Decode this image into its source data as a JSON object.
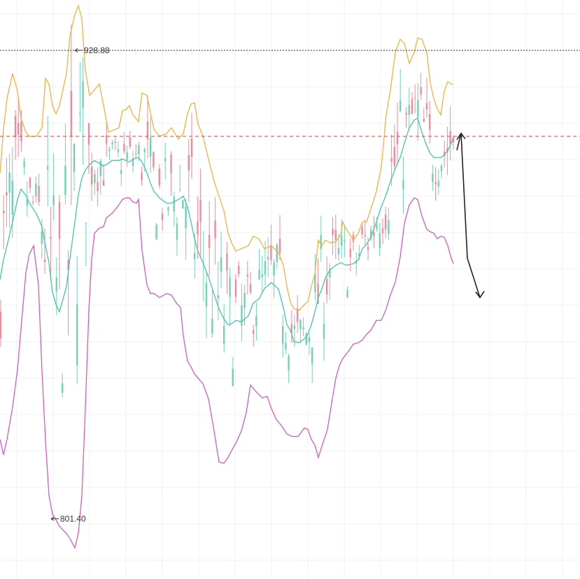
{
  "chart_data": {
    "type": "candlestick",
    "grid": true,
    "colors": {
      "up": "#6fd3b3",
      "down": "#f08a9a",
      "upper_band": "#f0b23c",
      "middle_band": "#3ec8ae",
      "lower_band": "#d85ac0",
      "high_line": "#333333",
      "ref_line": "#d95757",
      "arrow": "#222222",
      "grid": "#f1f1f1"
    },
    "y_range": [
      785,
      942
    ],
    "annotations": {
      "high_label": "928.88",
      "low_label": "801.40",
      "high_value": 928.88,
      "low_value": 801.4,
      "reference_level": 905.5
    },
    "upper_band": [
      [
        0,
        895.4
      ],
      [
        5,
        907.3
      ],
      [
        10,
        915.7
      ],
      [
        18,
        922.6
      ],
      [
        25,
        917.8
      ],
      [
        30,
        910.4
      ],
      [
        37,
        906.6
      ],
      [
        42,
        905.5
      ],
      [
        52,
        905.5
      ],
      [
        60,
        907.8
      ],
      [
        65,
        921.3
      ],
      [
        70,
        919.7
      ],
      [
        75,
        913.8
      ],
      [
        80,
        911.6
      ],
      [
        85,
        913.8
      ],
      [
        95,
        922.6
      ],
      [
        100,
        932.9
      ],
      [
        107,
        938.6
      ],
      [
        112,
        941.0
      ],
      [
        117,
        937.4
      ],
      [
        122,
        923.5
      ],
      [
        128,
        916.6
      ],
      [
        135,
        918.1
      ],
      [
        142,
        919.7
      ],
      [
        148,
        914.0
      ],
      [
        155,
        906.6
      ],
      [
        160,
        907.0
      ],
      [
        170,
        907.8
      ],
      [
        175,
        912.4
      ],
      [
        180,
        912.8
      ],
      [
        185,
        913.8
      ],
      [
        190,
        911.3
      ],
      [
        198,
        909.5
      ],
      [
        203,
        917.3
      ],
      [
        210,
        916.6
      ],
      [
        215,
        912.0
      ],
      [
        220,
        907.4
      ],
      [
        228,
        905.5
      ],
      [
        238,
        906.2
      ],
      [
        245,
        907.8
      ],
      [
        255,
        904.7
      ],
      [
        262,
        906.2
      ],
      [
        268,
        911.6
      ],
      [
        273,
        914.3
      ],
      [
        278,
        914.6
      ],
      [
        283,
        908.9
      ],
      [
        290,
        905.5
      ],
      [
        298,
        899.3
      ],
      [
        306,
        893.2
      ],
      [
        313,
        889.2
      ],
      [
        320,
        885.2
      ],
      [
        326,
        879.1
      ],
      [
        332,
        876.1
      ],
      [
        337,
        874.2
      ],
      [
        345,
        874.9
      ],
      [
        355,
        875.7
      ],
      [
        362,
        878.3
      ],
      [
        370,
        877.6
      ],
      [
        378,
        874.9
      ],
      [
        388,
        875.7
      ],
      [
        398,
        873.8
      ],
      [
        405,
        870.4
      ],
      [
        410,
        864.6
      ],
      [
        415,
        860.4
      ],
      [
        420,
        858.5
      ],
      [
        428,
        858.1
      ],
      [
        435,
        859.7
      ],
      [
        440,
        860.4
      ],
      [
        445,
        864.6
      ],
      [
        450,
        868.0
      ],
      [
        455,
        877.2
      ],
      [
        460,
        875.7
      ],
      [
        465,
        877.2
      ],
      [
        472,
        876.5
      ],
      [
        480,
        876.8
      ],
      [
        487,
        878.8
      ],
      [
        490,
        882.2
      ],
      [
        495,
        880.2
      ],
      [
        505,
        877.2
      ],
      [
        512,
        879.1
      ],
      [
        518,
        882.2
      ],
      [
        524,
        882.2
      ],
      [
        530,
        885.7
      ],
      [
        538,
        890.5
      ],
      [
        545,
        897.1
      ],
      [
        552,
        911.3
      ],
      [
        558,
        918.1
      ],
      [
        565,
        928.3
      ],
      [
        572,
        931.9
      ],
      [
        578,
        930.8
      ],
      [
        585,
        925.3
      ],
      [
        592,
        928.3
      ],
      [
        597,
        932.2
      ],
      [
        603,
        931.9
      ],
      [
        610,
        928.3
      ],
      [
        615,
        920.0
      ],
      [
        620,
        915.7
      ],
      [
        625,
        913.0
      ],
      [
        630,
        911.3
      ],
      [
        635,
        917.8
      ],
      [
        640,
        920.4
      ],
      [
        645,
        919.7
      ],
      [
        648,
        919.7
      ]
    ],
    "middle_band": [
      [
        0,
        866.5
      ],
      [
        5,
        871.9
      ],
      [
        10,
        875.7
      ],
      [
        18,
        882.2
      ],
      [
        25,
        888.3
      ],
      [
        30,
        891.1
      ],
      [
        37,
        889.4
      ],
      [
        42,
        887.3
      ],
      [
        52,
        884.4
      ],
      [
        60,
        880.9
      ],
      [
        65,
        875.7
      ],
      [
        70,
        871.1
      ],
      [
        75,
        863.1
      ],
      [
        80,
        859.7
      ],
      [
        85,
        857.7
      ],
      [
        95,
        864.6
      ],
      [
        100,
        872.3
      ],
      [
        107,
        882.2
      ],
      [
        112,
        889.6
      ],
      [
        117,
        894.1
      ],
      [
        122,
        896.3
      ],
      [
        128,
        897.8
      ],
      [
        135,
        898.9
      ],
      [
        142,
        898.1
      ],
      [
        148,
        897.4
      ],
      [
        155,
        898.1
      ],
      [
        160,
        898.9
      ],
      [
        170,
        898.9
      ],
      [
        175,
        899.3
      ],
      [
        180,
        898.9
      ],
      [
        185,
        898.5
      ],
      [
        190,
        899.3
      ],
      [
        198,
        899.7
      ],
      [
        203,
        898.5
      ],
      [
        210,
        895.6
      ],
      [
        215,
        892.7
      ],
      [
        220,
        890.5
      ],
      [
        228,
        888.7
      ],
      [
        238,
        887.3
      ],
      [
        245,
        887.3
      ],
      [
        255,
        888.3
      ],
      [
        262,
        889.2
      ],
      [
        268,
        886.3
      ],
      [
        273,
        882.2
      ],
      [
        278,
        877.6
      ],
      [
        283,
        874.2
      ],
      [
        290,
        871.1
      ],
      [
        298,
        867.2
      ],
      [
        306,
        862.5
      ],
      [
        313,
        858.5
      ],
      [
        320,
        855.8
      ],
      [
        326,
        854.2
      ],
      [
        332,
        854.6
      ],
      [
        337,
        855.4
      ],
      [
        345,
        855.0
      ],
      [
        355,
        856.6
      ],
      [
        362,
        860.1
      ],
      [
        370,
        861.2
      ],
      [
        378,
        864.1
      ],
      [
        388,
        865.7
      ],
      [
        398,
        863.9
      ],
      [
        405,
        858.9
      ],
      [
        410,
        854.2
      ],
      [
        415,
        852.7
      ],
      [
        420,
        849.6
      ],
      [
        428,
        849.3
      ],
      [
        435,
        850.4
      ],
      [
        440,
        851.6
      ],
      [
        445,
        854.2
      ],
      [
        450,
        857.7
      ],
      [
        455,
        861.6
      ],
      [
        460,
        863.9
      ],
      [
        465,
        866.9
      ],
      [
        472,
        869.2
      ],
      [
        480,
        870.4
      ],
      [
        487,
        871.1
      ],
      [
        490,
        870.8
      ],
      [
        495,
        870.4
      ],
      [
        505,
        870.8
      ],
      [
        512,
        871.9
      ],
      [
        518,
        874.9
      ],
      [
        524,
        876.1
      ],
      [
        530,
        878.0
      ],
      [
        538,
        882.2
      ],
      [
        545,
        886.3
      ],
      [
        552,
        889.6
      ],
      [
        558,
        893.2
      ],
      [
        565,
        896.7
      ],
      [
        572,
        899.7
      ],
      [
        578,
        903.6
      ],
      [
        585,
        907.8
      ],
      [
        592,
        909.9
      ],
      [
        597,
        910.4
      ],
      [
        603,
        906.6
      ],
      [
        610,
        902.8
      ],
      [
        615,
        900.8
      ],
      [
        620,
        899.7
      ],
      [
        625,
        899.7
      ],
      [
        630,
        899.7
      ],
      [
        635,
        900.4
      ],
      [
        640,
        901.6
      ],
      [
        645,
        903.6
      ],
      [
        648,
        905.1
      ]
    ],
    "lower_band": [
      [
        0,
        823.0
      ],
      [
        5,
        818.8
      ],
      [
        10,
        823.0
      ],
      [
        18,
        831.8
      ],
      [
        25,
        842.0
      ],
      [
        30,
        853.1
      ],
      [
        37,
        868.4
      ],
      [
        42,
        873.4
      ],
      [
        48,
        875.7
      ],
      [
        55,
        865.0
      ],
      [
        60,
        841.6
      ],
      [
        65,
        822.7
      ],
      [
        70,
        807.7
      ],
      [
        75,
        802.7
      ],
      [
        80,
        801.1
      ],
      [
        85,
        799.3
      ],
      [
        95,
        797.4
      ],
      [
        100,
        796.0
      ],
      [
        107,
        793.5
      ],
      [
        112,
        797.4
      ],
      [
        117,
        807.7
      ],
      [
        122,
        831.5
      ],
      [
        127,
        858.1
      ],
      [
        131,
        871.9
      ],
      [
        135,
        879.1
      ],
      [
        142,
        880.5
      ],
      [
        148,
        880.9
      ],
      [
        152,
        883.3
      ],
      [
        160,
        884.5
      ],
      [
        168,
        886.3
      ],
      [
        175,
        888.3
      ],
      [
        180,
        888.7
      ],
      [
        185,
        888.7
      ],
      [
        190,
        887.6
      ],
      [
        195,
        887.3
      ],
      [
        198,
        888.3
      ],
      [
        203,
        874.5
      ],
      [
        210,
        865.0
      ],
      [
        215,
        862.7
      ],
      [
        220,
        862.7
      ],
      [
        228,
        861.6
      ],
      [
        238,
        862.7
      ],
      [
        245,
        862.3
      ],
      [
        252,
        860.1
      ],
      [
        258,
        858.9
      ],
      [
        262,
        851.2
      ],
      [
        268,
        844.3
      ],
      [
        273,
        842.7
      ],
      [
        278,
        840.8
      ],
      [
        283,
        839.7
      ],
      [
        290,
        838.2
      ],
      [
        298,
        834.0
      ],
      [
        306,
        825.3
      ],
      [
        313,
        816.9
      ],
      [
        320,
        816.5
      ],
      [
        326,
        818.1
      ],
      [
        332,
        820.3
      ],
      [
        338,
        822.3
      ],
      [
        345,
        825.3
      ],
      [
        352,
        830.3
      ],
      [
        358,
        837.8
      ],
      [
        365,
        836.2
      ],
      [
        375,
        834.3
      ],
      [
        382,
        834.7
      ],
      [
        388,
        831.3
      ],
      [
        395,
        828.4
      ],
      [
        402,
        826.8
      ],
      [
        410,
        824.5
      ],
      [
        417,
        823.8
      ],
      [
        426,
        823.8
      ],
      [
        435,
        826.1
      ],
      [
        440,
        825.7
      ],
      [
        445,
        823.0
      ],
      [
        450,
        821.5
      ],
      [
        455,
        818.1
      ],
      [
        460,
        821.1
      ],
      [
        468,
        825.7
      ],
      [
        475,
        834.0
      ],
      [
        480,
        839.7
      ],
      [
        485,
        843.1
      ],
      [
        490,
        845.0
      ],
      [
        498,
        847.0
      ],
      [
        505,
        848.9
      ],
      [
        512,
        849.3
      ],
      [
        518,
        850.1
      ],
      [
        524,
        851.6
      ],
      [
        530,
        852.7
      ],
      [
        538,
        855.4
      ],
      [
        545,
        855.4
      ],
      [
        552,
        858.5
      ],
      [
        558,
        862.3
      ],
      [
        565,
        865.8
      ],
      [
        572,
        872.6
      ],
      [
        578,
        881.8
      ],
      [
        585,
        886.8
      ],
      [
        592,
        888.7
      ],
      [
        597,
        888.3
      ],
      [
        603,
        883.8
      ],
      [
        610,
        880.2
      ],
      [
        615,
        879.5
      ],
      [
        620,
        879.1
      ],
      [
        625,
        877.6
      ],
      [
        630,
        878.3
      ],
      [
        635,
        878.0
      ],
      [
        640,
        875.7
      ],
      [
        645,
        872.3
      ],
      [
        648,
        870.8
      ]
    ],
    "projection_arrow": [
      [
        653,
        901.7
      ],
      [
        659,
        906.3
      ],
      [
        668,
        872.3
      ],
      [
        686,
        861.6
      ]
    ]
  }
}
